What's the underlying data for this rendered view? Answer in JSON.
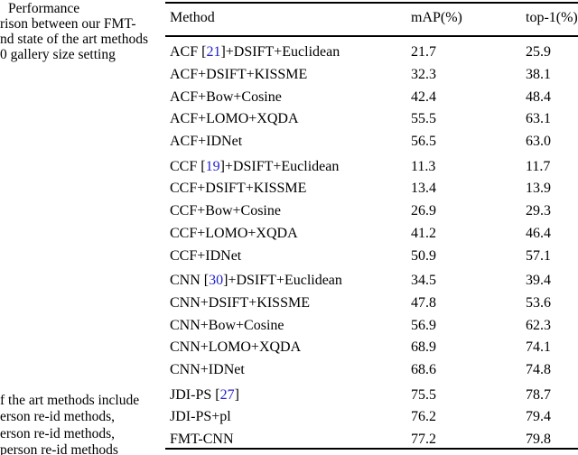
{
  "caption": {
    "lines": [
      "Performance",
      "rison between our FMT-",
      "nd state of the art methods",
      "0 gallery size setting"
    ]
  },
  "footnote": {
    "lines": [
      "f the art methods include",
      "erson re-id methods,",
      "erson re-id methods,",
      "person re-id methods"
    ]
  },
  "colors": {
    "citation_link": "#2222cc",
    "text": "#000000",
    "rule": "#000000",
    "background": "#ffffff"
  },
  "table": {
    "columns": [
      "Method",
      "mAP(%)",
      "top-1(%)"
    ],
    "groups": [
      {
        "rows": [
          {
            "pre": "ACF [",
            "cite": "21",
            "post": "]+DSIFT+Euclidean",
            "map": "21.7",
            "top1": "25.9"
          },
          {
            "pre": "ACF+DSIFT+KISSME",
            "map": "32.3",
            "top1": "38.1"
          },
          {
            "pre": "ACF+Bow+Cosine",
            "map": "42.4",
            "top1": "48.4"
          },
          {
            "pre": "ACF+LOMO+XQDA",
            "map": "55.5",
            "top1": "63.1"
          },
          {
            "pre": "ACF+IDNet",
            "map": "56.5",
            "top1": "63.0"
          }
        ]
      },
      {
        "rows": [
          {
            "pre": "CCF [",
            "cite": "19",
            "post": "]+DSIFT+Euclidean",
            "map": "11.3",
            "top1": "11.7"
          },
          {
            "pre": "CCF+DSIFT+KISSME",
            "map": "13.4",
            "top1": "13.9"
          },
          {
            "pre": "CCF+Bow+Cosine",
            "map": "26.9",
            "top1": "29.3"
          },
          {
            "pre": "CCF+LOMO+XQDA",
            "map": "41.2",
            "top1": "46.4"
          },
          {
            "pre": "CCF+IDNet",
            "map": "50.9",
            "top1": "57.1"
          }
        ]
      },
      {
        "rows": [
          {
            "pre": "CNN [",
            "cite": "30",
            "post": "]+DSIFT+Euclidean",
            "map": "34.5",
            "top1": "39.4"
          },
          {
            "pre": "CNN+DSIFT+KISSME",
            "map": "47.8",
            "top1": "53.6"
          },
          {
            "pre": "CNN+Bow+Cosine",
            "map": "56.9",
            "top1": "62.3"
          },
          {
            "pre": "CNN+LOMO+XQDA",
            "map": "68.9",
            "top1": "74.1"
          },
          {
            "pre": "CNN+IDNet",
            "map": "68.6",
            "top1": "74.8"
          }
        ]
      },
      {
        "rows": [
          {
            "pre": "JDI-PS [",
            "cite": "27",
            "post": "]",
            "map": "75.5",
            "top1": "78.7"
          },
          {
            "pre": "JDI-PS+pl",
            "map": "76.2",
            "top1": "79.4"
          },
          {
            "pre": "FMT-CNN",
            "map": "77.2",
            "top1": "79.8"
          }
        ]
      }
    ]
  }
}
